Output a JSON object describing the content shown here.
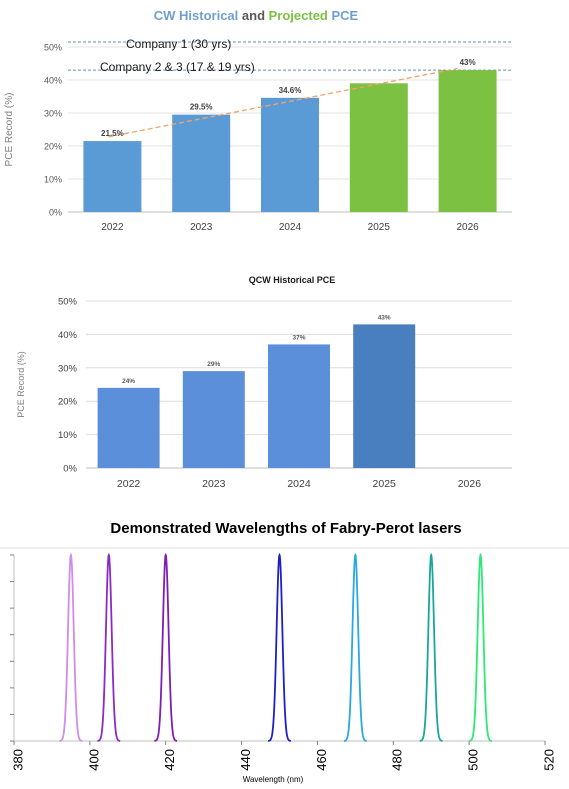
{
  "chart_data": [
    {
      "type": "bar",
      "title_parts": [
        {
          "text": "CW Historical",
          "color": "#6f9fd0"
        },
        {
          "text": " and ",
          "color": "#595959"
        },
        {
          "text": "Projected",
          "color": "#7dc142"
        },
        {
          "text": " PCE",
          "color": "#6f9fd0"
        }
      ],
      "categories": [
        "2022",
        "2023",
        "2024",
        "2025",
        "2026"
      ],
      "values": [
        21.5,
        29.5,
        34.6,
        39,
        43
      ],
      "data_labels": [
        "21.5%",
        "29.5%",
        "34.6%",
        "",
        "43%"
      ],
      "bar_colors": [
        "#5b9bd5",
        "#5b9bd5",
        "#5b9bd5",
        "#7dc142",
        "#7dc142"
      ],
      "ylabel": "PCE Record (%)",
      "ylim": [
        0,
        50
      ],
      "yticks": [
        "0%",
        "10%",
        "20%",
        "30%",
        "40%",
        "50%"
      ],
      "trendline": {
        "color": "#f4a26b",
        "style": "dashed"
      },
      "reference_lines": [
        {
          "label": "Company 1 (30 yrs)",
          "value": 51.5
        },
        {
          "label": "Company 2 & 3 (17 & 19 yrs)",
          "value": 43
        }
      ],
      "grid": true
    },
    {
      "type": "bar",
      "title": "QCW  Historical PCE",
      "categories": [
        "2022",
        "2023",
        "2024",
        "2025",
        "2026"
      ],
      "values": [
        24,
        29,
        37,
        43,
        null
      ],
      "data_labels": [
        "24%",
        "29%",
        "37%",
        "43%",
        ""
      ],
      "bar_colors": [
        "#5b8fd9",
        "#5b8fd9",
        "#5b8fd9",
        "#4a7fbf",
        "#5b8fd9"
      ],
      "ylabel": "PCE Record (%)",
      "ylim": [
        0,
        50
      ],
      "yticks": [
        "0%",
        "10%",
        "20%",
        "30%",
        "40%",
        "50%"
      ],
      "grid": true
    },
    {
      "type": "line",
      "title": "Demonstrated Wavelengths of Fabry-Perot lasers",
      "xlabel": "Wavelength (nm)",
      "xlim": [
        380,
        520
      ],
      "xticks": [
        "380",
        "400",
        "420",
        "440",
        "460",
        "480",
        "500",
        "520"
      ],
      "peaks": [
        {
          "x": 395,
          "color": "#d08ce8"
        },
        {
          "x": 405,
          "color": "#8a2bc6"
        },
        {
          "x": 420,
          "color": "#7d1fb5"
        },
        {
          "x": 450,
          "color": "#1f1fc8"
        },
        {
          "x": 470,
          "color": "#29a9e0"
        },
        {
          "x": 490,
          "color": "#1aa79a"
        },
        {
          "x": 503,
          "color": "#2ee87a"
        }
      ],
      "grid": false
    }
  ]
}
